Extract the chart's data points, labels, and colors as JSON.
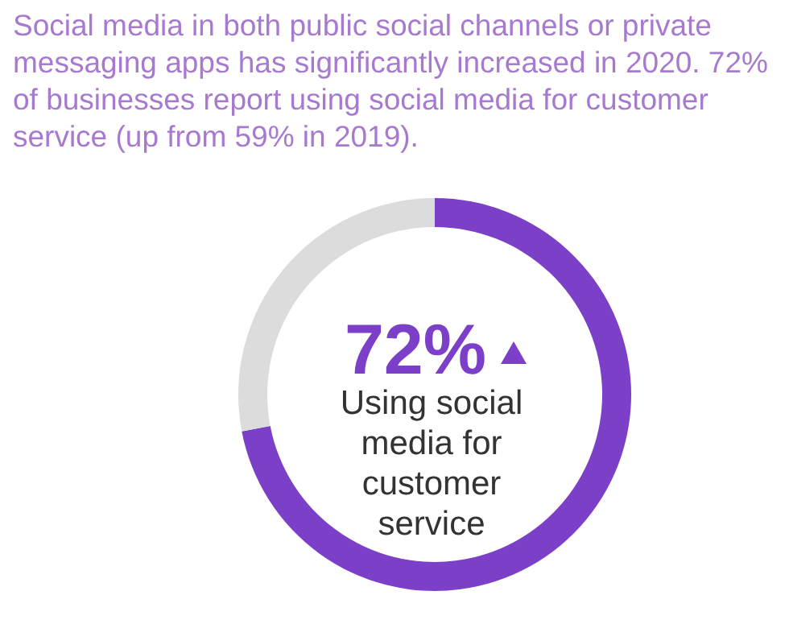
{
  "chart_data": {
    "type": "donut",
    "title": "Social media in both public social channels or private messaging apps has significantly increased in 2020. 72% of businesses report using social media for customer service (up from 59% in 2019).",
    "categories": [
      null,
      null
    ],
    "values": [
      72,
      28
    ],
    "colors": [
      "#7b3fc8",
      "#dcdcdc"
    ],
    "annotations": [
      "72%",
      "Using social media for customer service"
    ]
  }
}
